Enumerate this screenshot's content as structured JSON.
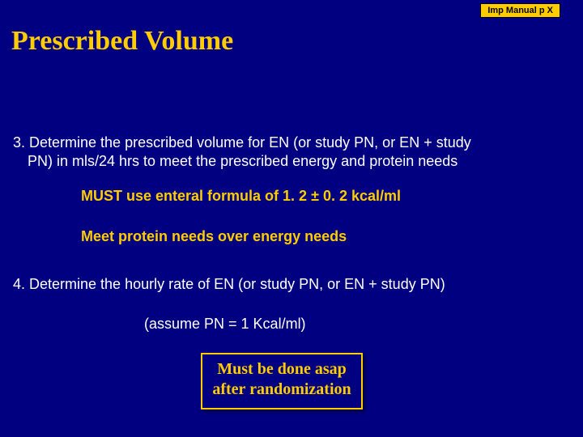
{
  "badge": "Imp Manual p X",
  "title": "Prescribed Volume",
  "item3_line1": "3. Determine the prescribed volume for EN (or study PN, or  EN + study",
  "item3_line2": "PN) in mls/24 hrs to meet the prescribed energy and protein needs",
  "sub1": "MUST use enteral formula of 1. 2 ± 0. 2 kcal/ml",
  "sub2": "Meet protein needs over energy needs",
  "item4": "4. Determine the hourly rate of EN (or study PN, or EN + study PN)",
  "assume": "(assume PN = 1 Kcal/ml)",
  "callout": "Must be done asap after randomization"
}
